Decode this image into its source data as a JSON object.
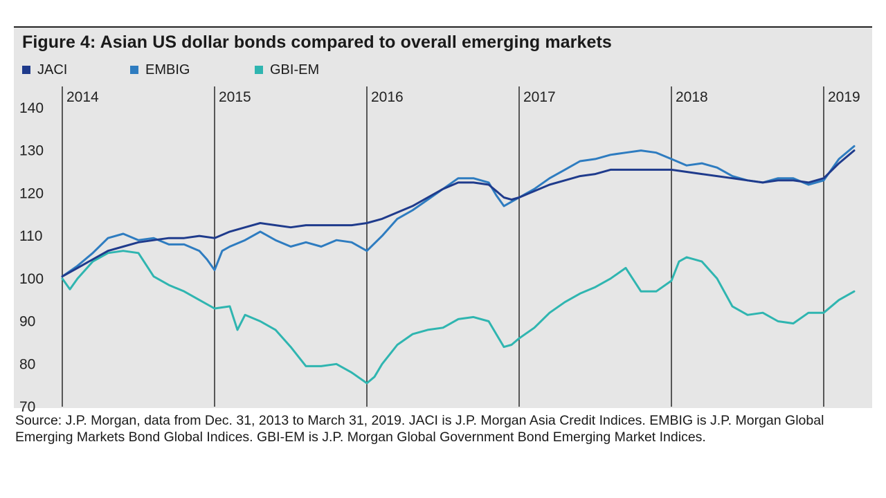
{
  "chart_data": {
    "type": "line",
    "title": "Figure 4: Asian US dollar bonds compared to overall emerging markets",
    "xlabel": "",
    "ylabel": "",
    "xlim": [
      2014.0,
      2019.25
    ],
    "ylim": [
      70,
      145
    ],
    "y_ticks": [
      70,
      80,
      90,
      100,
      110,
      120,
      130,
      140
    ],
    "year_labels": [
      "2014",
      "2015",
      "2016",
      "2017",
      "2018",
      "2019"
    ],
    "year_positions": [
      2014,
      2015,
      2016,
      2017,
      2018,
      2019
    ],
    "grid": "vertical lines at year boundaries",
    "legend_position": "top-left, horizontal",
    "series": [
      {
        "name": "JACI",
        "color": "#1f3b8c",
        "x": [
          2014.0,
          2014.1,
          2014.2,
          2014.3,
          2014.4,
          2014.5,
          2014.6,
          2014.7,
          2014.8,
          2014.9,
          2015.0,
          2015.1,
          2015.2,
          2015.3,
          2015.4,
          2015.5,
          2015.6,
          2015.7,
          2015.8,
          2015.9,
          2016.0,
          2016.1,
          2016.2,
          2016.3,
          2016.4,
          2016.5,
          2016.6,
          2016.7,
          2016.8,
          2016.85,
          2016.9,
          2016.95,
          2017.0,
          2017.1,
          2017.2,
          2017.3,
          2017.4,
          2017.5,
          2017.6,
          2017.7,
          2017.8,
          2017.9,
          2018.0,
          2018.1,
          2018.2,
          2018.3,
          2018.4,
          2018.5,
          2018.6,
          2018.7,
          2018.8,
          2018.9,
          2019.0,
          2019.1,
          2019.2
        ],
        "values": [
          100.5,
          102.5,
          104.5,
          106.5,
          107.5,
          108.5,
          109,
          109.5,
          109.5,
          110,
          109.5,
          111,
          112,
          113,
          112.5,
          112,
          112.5,
          112.5,
          112.5,
          112.5,
          113,
          114,
          115.5,
          117,
          119,
          121,
          122.5,
          122.5,
          122,
          120.5,
          119,
          118.5,
          119,
          120.5,
          122,
          123,
          124,
          124.5,
          125.5,
          125.5,
          125.5,
          125.5,
          125.5,
          125,
          124.5,
          124,
          123.5,
          123,
          122.5,
          123,
          123,
          122.5,
          123.5,
          127,
          130
        ]
      },
      {
        "name": "EMBIG",
        "color": "#2e7cc0",
        "x": [
          2014.0,
          2014.1,
          2014.2,
          2014.3,
          2014.4,
          2014.5,
          2014.6,
          2014.7,
          2014.8,
          2014.9,
          2014.95,
          2015.0,
          2015.05,
          2015.1,
          2015.2,
          2015.3,
          2015.4,
          2015.5,
          2015.6,
          2015.7,
          2015.8,
          2015.9,
          2016.0,
          2016.1,
          2016.2,
          2016.3,
          2016.4,
          2016.5,
          2016.6,
          2016.7,
          2016.8,
          2016.85,
          2016.9,
          2016.95,
          2017.0,
          2017.1,
          2017.2,
          2017.3,
          2017.4,
          2017.5,
          2017.6,
          2017.7,
          2017.8,
          2017.9,
          2018.0,
          2018.1,
          2018.2,
          2018.3,
          2018.4,
          2018.5,
          2018.6,
          2018.7,
          2018.8,
          2018.9,
          2019.0,
          2019.1,
          2019.2
        ],
        "values": [
          100.5,
          103,
          106,
          109.5,
          110.5,
          109,
          109.5,
          108,
          108,
          106.5,
          104.5,
          102,
          106.5,
          107.5,
          109,
          111,
          109,
          107.5,
          108.5,
          107.5,
          109,
          108.5,
          106.5,
          110,
          114,
          116,
          118.5,
          121,
          123.5,
          123.5,
          122.5,
          119.5,
          117,
          118,
          119,
          121,
          123.5,
          125.5,
          127.5,
          128,
          129,
          129.5,
          130,
          129.5,
          128,
          126.5,
          127,
          126,
          124,
          123,
          122.5,
          123.5,
          123.5,
          122,
          123,
          128,
          131
        ]
      },
      {
        "name": "GBI-EM",
        "color": "#2fb5b0",
        "x": [
          2014.0,
          2014.05,
          2014.1,
          2014.2,
          2014.3,
          2014.4,
          2014.5,
          2014.6,
          2014.7,
          2014.8,
          2014.9,
          2015.0,
          2015.1,
          2015.15,
          2015.2,
          2015.3,
          2015.4,
          2015.5,
          2015.6,
          2015.7,
          2015.8,
          2015.9,
          2016.0,
          2016.05,
          2016.1,
          2016.2,
          2016.3,
          2016.4,
          2016.5,
          2016.6,
          2016.7,
          2016.8,
          2016.85,
          2016.9,
          2016.95,
          2017.0,
          2017.1,
          2017.2,
          2017.3,
          2017.4,
          2017.5,
          2017.6,
          2017.7,
          2017.8,
          2017.9,
          2018.0,
          2018.05,
          2018.1,
          2018.2,
          2018.3,
          2018.4,
          2018.5,
          2018.6,
          2018.7,
          2018.8,
          2018.9,
          2019.0,
          2019.1,
          2019.2
        ],
        "values": [
          100,
          97.5,
          100,
          104,
          106,
          106.5,
          106,
          100.5,
          98.5,
          97,
          95,
          93,
          93.5,
          88,
          91.5,
          90,
          88,
          84,
          79.5,
          79.5,
          80,
          78,
          75.5,
          77,
          80,
          84.5,
          87,
          88,
          88.5,
          90.5,
          91,
          90,
          87,
          84,
          84.5,
          86,
          88.5,
          92,
          94.5,
          96.5,
          98,
          100,
          102.5,
          97,
          97,
          99.5,
          104,
          105,
          104,
          100,
          93.5,
          91.5,
          92,
          90,
          89.5,
          92,
          92,
          95,
          97
        ]
      }
    ]
  },
  "source_note": "Source: J.P. Morgan, data from Dec. 31, 2013 to March 31, 2019. JACI is J.P. Morgan Asia Credit Indices. EMBIG is J.P. Morgan Global Emerging Markets Bond Global Indices. GBI-EM is J.P. Morgan Global Government Bond Emerging Market Indices."
}
